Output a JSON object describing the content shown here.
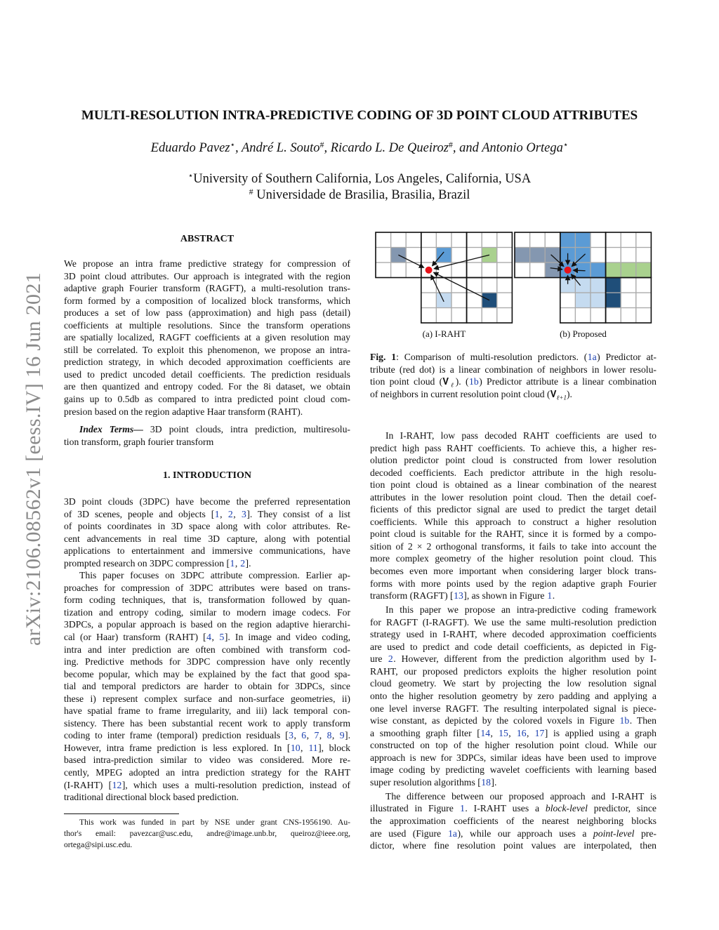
{
  "arxiv_stamp": "arXiv:2106.08562v1  [eess.IV]  16 Jun 2021",
  "title": "MULTI-RESOLUTION INTRA-PREDICTIVE CODING OF 3D POINT CLOUD ATTRIBUTES",
  "authors": [
    {
      "name": "Eduardo Pavez",
      "mark": "⋆",
      "sep": ", "
    },
    {
      "name": "André L. Souto",
      "mark": "#",
      "sep": ", "
    },
    {
      "name": "Ricardo L. De Queiroz",
      "mark": "#",
      "sep": ", and "
    },
    {
      "name": "Antonio Ortega",
      "mark": "⋆",
      "sep": ""
    }
  ],
  "affiliations": [
    {
      "mark": "⋆",
      "text": "University of Southern California, Los Angeles, California, USA"
    },
    {
      "mark": "#",
      "text": " Universidade de Brasilia, Brasilia, Brazil"
    }
  ],
  "abstract": {
    "heading": "ABSTRACT",
    "lines": [
      "We propose an intra frame predictive strategy for compression of",
      "3D point cloud attributes. Our approach is integrated with the region",
      "adaptive graph Fourier transform (RAGFT), a multi-resolution trans-",
      "form formed by a composition of localized block transforms, which",
      "produces a set of low pass (approximation) and high pass (detail)",
      "coefficients at multiple resolutions. Since the transform operations",
      "are spatially localized, RAGFT coefficients at a given resolution may",
      "still be correlated. To exploit this phenomenon, we propose an intra-",
      "prediction strategy, in which decoded approximation coefficients are",
      "used to predict uncoded detail coefficients. The prediction residuals",
      "are then quantized and entropy coded. For the 8i dataset, we obtain",
      "gains up to 0.5db as compared to intra predicted point cloud com-",
      "presion based on the region adaptive Haar transform (RAHT)."
    ]
  },
  "index_terms": {
    "label": "Index Terms—",
    "lines": [
      " 3D point clouds, intra prediction, multiresolu-",
      "tion transform, graph fourier transform"
    ]
  },
  "intro": {
    "heading": "1.  INTRODUCTION",
    "paragraphs": [
      [
        "3D point clouds (3DPC) have become the preferred representation",
        "of 3D scenes, people and objects [{1}, {2}, {3}]. They consist of a list",
        "of points coordinates in 3D space along with color attributes. Re-",
        "cent advancements in real time 3D capture, along with potential",
        "applications to entertainment and immersive communications, have",
        "prompted research on 3DPC compression [{1}, {2}]."
      ],
      [
        "This paper focuses on 3DPC attribute compression. Earlier ap-",
        "proaches for compression of 3DPC attributes were based on trans-",
        "form coding techniques, that is, transformation followed by quan-",
        "tization and entropy coding, similar to modern image codecs. For",
        "3DPCs, a popular approach is based on the region adaptive hierarchi-",
        "cal (or Haar) transform (RAHT) [{4}, {5}]. In image and video coding,",
        "intra and inter prediction are often combined with transform cod-",
        "ing. Predictive methods for 3DPC compression have only recently",
        "become popular, which may be explained by the fact that good spa-",
        "tial and temporal predictors are harder to obtain for 3DPCs, since",
        "these i) represent complex surface and non-surface geometries, ii)",
        "have spatial frame to frame irregularity, and iii) lack temporal con-",
        "sistency. There has been substantial recent work to apply transform",
        "coding to inter frame (temporal) prediction residuals [{3}, {6}, {7}, {8}, {9}].",
        "However, intra frame prediction is less explored. In [{10}, {11}], block",
        "based intra-prediction similar to video was considered. More re-",
        "cently, MPEG adopted an intra prediction strategy for the RAHT",
        "(I-RAHT) [{12}], which uses a multi-resolution prediction, instead of",
        "traditional directional block based prediction."
      ]
    ]
  },
  "footnote": {
    "lines": [
      "This work was funded in part by NSE under grant CNS-1956190. Au-",
      "thor's email: pavezcar@usc.edu, andre@image.unb.br, queiroz@ieee.org,",
      "ortega@sipi.usc.edu."
    ]
  },
  "figure": {
    "subfigures": [
      {
        "caption": "(a) I-RAHT",
        "cells": [
          {
            "row": 1,
            "col": 1,
            "color": "#8497b0"
          },
          {
            "row": 1,
            "col": 4,
            "color": "#5b9bd5"
          },
          {
            "row": 1,
            "col": 7,
            "color": "#a9d18e"
          },
          {
            "row": 4,
            "col": 4,
            "color": "#c5dbf0"
          },
          {
            "row": 4,
            "col": 7,
            "color": "#1f4e79"
          }
        ]
      },
      {
        "caption": "(b) Proposed",
        "cells": [
          {
            "row": 0,
            "col": 3,
            "color": "#5b9bd5"
          },
          {
            "row": 0,
            "col": 4,
            "color": "#5b9bd5"
          },
          {
            "row": 1,
            "col": 0,
            "color": "#8497b0"
          },
          {
            "row": 1,
            "col": 1,
            "color": "#8497b0"
          },
          {
            "row": 1,
            "col": 2,
            "color": "#8497b0"
          },
          {
            "row": 1,
            "col": 3,
            "color": "#5b9bd5"
          },
          {
            "row": 1,
            "col": 4,
            "color": "#5b9bd5"
          },
          {
            "row": 2,
            "col": 2,
            "color": "#8497b0"
          },
          {
            "row": 2,
            "col": 3,
            "color": "#5b9bd5"
          },
          {
            "row": 2,
            "col": 4,
            "color": "#5b9bd5"
          },
          {
            "row": 2,
            "col": 5,
            "color": "#5b9bd5"
          },
          {
            "row": 2,
            "col": 6,
            "color": "#a9d18e"
          },
          {
            "row": 2,
            "col": 7,
            "color": "#a9d18e"
          },
          {
            "row": 2,
            "col": 8,
            "color": "#a9d18e"
          },
          {
            "row": 3,
            "col": 3,
            "color": "#c5dbf0"
          },
          {
            "row": 3,
            "col": 4,
            "color": "#c5dbf0"
          },
          {
            "row": 3,
            "col": 5,
            "color": "#c5dbf0"
          },
          {
            "row": 3,
            "col": 6,
            "color": "#1f4e79"
          },
          {
            "row": 4,
            "col": 4,
            "color": "#c5dbf0"
          },
          {
            "row": 4,
            "col": 5,
            "color": "#c5dbf0"
          },
          {
            "row": 4,
            "col": 6,
            "color": "#1f4e79"
          }
        ]
      }
    ],
    "predicted_point_color": "#e8141b",
    "caption_lines": [
      "*Fig. 1*: Comparison of multi-resolution predictors. ({1a}) Predictor at-",
      "tribute (red dot) is a linear combination of neighbors in lower resolu-",
      "tion point cloud (𝐕_ℓ_). ({1b}) Predictor attribute is a linear combination",
      "of neighbors in current resolution point cloud (𝐕_ℓ+1_)."
    ]
  },
  "right_column": {
    "paragraphs": [
      [
        "In I-RAHT, low pass decoded RAHT coefficients are used to",
        "predict high pass RAHT coefficients. To achieve this, a higher res-",
        "olution predictor point cloud is constructed from lower resolution",
        "decoded coefficients. Each predictor attribute in the high resolu-",
        "tion point cloud is obtained as a linear combination of the nearest",
        "attributes in the lower resolution point cloud. Then the detail coef-",
        "ficients of this predictor signal are used to predict the target detail",
        "coefficients. While this approach to construct a higher resolution",
        "point cloud is suitable for the RAHT, since it is formed by a compo-",
        "sition of 2 × 2 orthogonal transforms, it fails to take into account the",
        "more complex geometry of the higher resolution point cloud. This",
        "becomes even more important when considering larger block trans-",
        "forms with more points used by the region adaptive graph Fourier",
        "transform (RAGFT) [{13}], as shown in Figure {1}."
      ],
      [
        "In this paper we propose an intra-predictive coding framework",
        "for RAGFT (I-RAGFT). We use the same multi-resolution prediction",
        "strategy used in I-RAHT, where decoded approximation coefficients",
        "are used to predict and code detail coefficients, as depicted in Fig-",
        "ure {2}. However, different from the prediction algorithm used by I-",
        "RAHT, our proposed predictors exploits the higher resolution point",
        "cloud geometry. We start by projecting the low resolution signal",
        "onto the higher resolution geometry by zero padding and applying a",
        "one level inverse RAGFT. The resulting interpolated signal is piece-",
        "wise constant, as depicted by the colored voxels in Figure {1b}. Then",
        "a smoothing graph filter [{14}, {15}, {16}, {17}] is applied using a graph",
        "constructed on top of the higher resolution point cloud. While our",
        "approach is new for 3DPCs, similar ideas have been used to improve",
        "image coding by predicting wavelet coefficients with learning based",
        "super resolution algorithms [{18}]."
      ],
      [
        "The difference between our proposed approach and I-RAHT is",
        "illustrated in Figure {1}. I-RAHT uses a _block-level_ predictor, since",
        "the approximation coefficients of the nearest neighboring blocks",
        "are used (Figure {1a}), while our approach uses a _point-level_ pre-",
        "dictor, where fine resolution point values are interpolated, then"
      ]
    ],
    "continues": true
  }
}
